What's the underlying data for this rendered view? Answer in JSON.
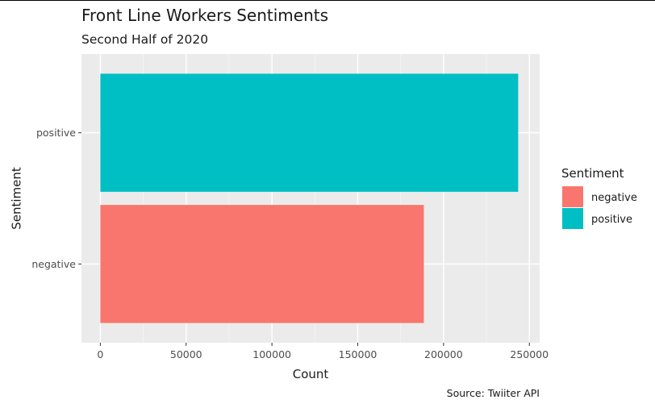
{
  "chart_data": {
    "type": "bar",
    "orientation": "horizontal",
    "title": "Front Line Workers Sentiments",
    "subtitle": "Second Half of 2020",
    "caption": "Source: Twiiter API",
    "xlabel": "Count",
    "ylabel": "Sentiment",
    "categories": [
      "negative",
      "positive"
    ],
    "values": [
      188500,
      243500
    ],
    "colors": [
      "#F8766D",
      "#00BFC4"
    ],
    "xlim": [
      -11000,
      256000
    ],
    "x_ticks": [
      0,
      50000,
      100000,
      150000,
      200000,
      250000
    ],
    "x_tick_labels": [
      "0",
      "50000",
      "100000",
      "150000",
      "200000",
      "250000"
    ],
    "grid": true,
    "panel_background": "#EBEBEB",
    "legend": {
      "title": "Sentiment",
      "position": "right",
      "entries": [
        {
          "label": "negative",
          "color": "#F8766D"
        },
        {
          "label": "positive",
          "color": "#00BFC4"
        }
      ]
    }
  }
}
